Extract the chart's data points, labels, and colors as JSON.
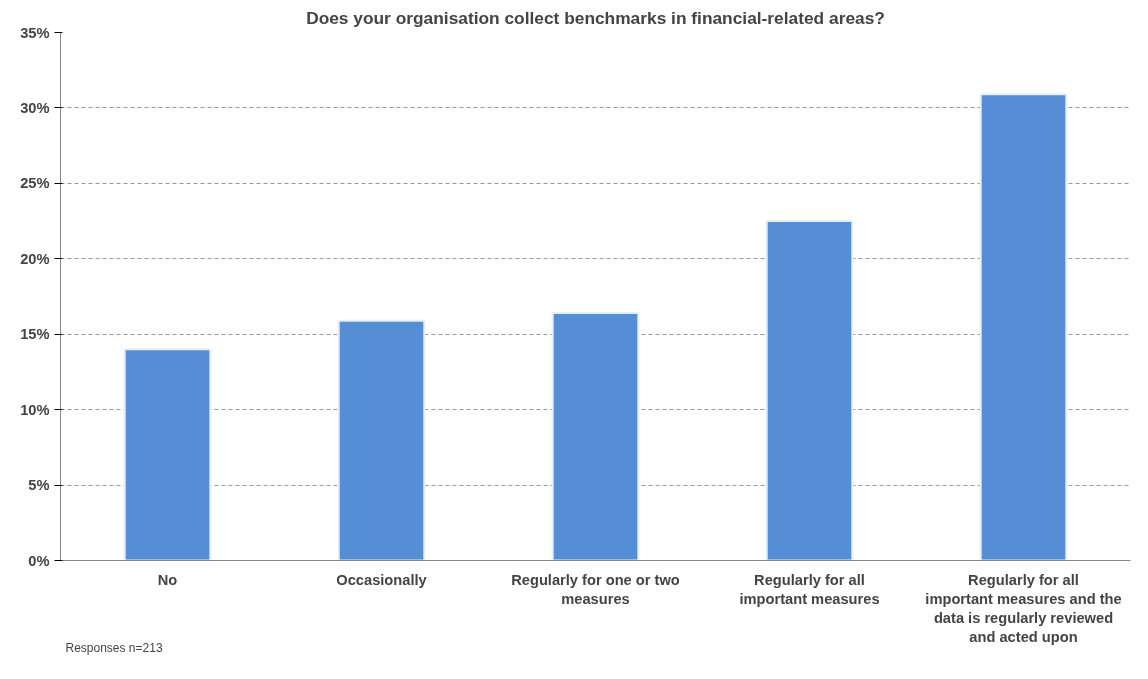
{
  "chart_data": {
    "type": "bar",
    "title": "Does your organisation collect benchmarks in financial-related areas?",
    "categories": [
      "No",
      "Occasionally",
      "Regularly for one or two measures",
      "Regularly for all important measures",
      "Regularly for all important measures and the data is regularly reviewed and acted upon"
    ],
    "values": [
      14.0,
      15.9,
      16.4,
      22.5,
      30.9
    ],
    "color": "#558ed5",
    "ylim": [
      0,
      35
    ],
    "yticks": [
      {
        "value": 0,
        "label": "0%"
      },
      {
        "value": 5,
        "label": "5%"
      },
      {
        "value": 10,
        "label": "10%"
      },
      {
        "value": 15,
        "label": "15%"
      },
      {
        "value": 20,
        "label": "20%"
      },
      {
        "value": 25,
        "label": "25%"
      },
      {
        "value": 30,
        "label": "30%"
      },
      {
        "value": 35,
        "label": "35%"
      }
    ],
    "grid": "y",
    "annotations": [
      "Responses n=213"
    ]
  }
}
